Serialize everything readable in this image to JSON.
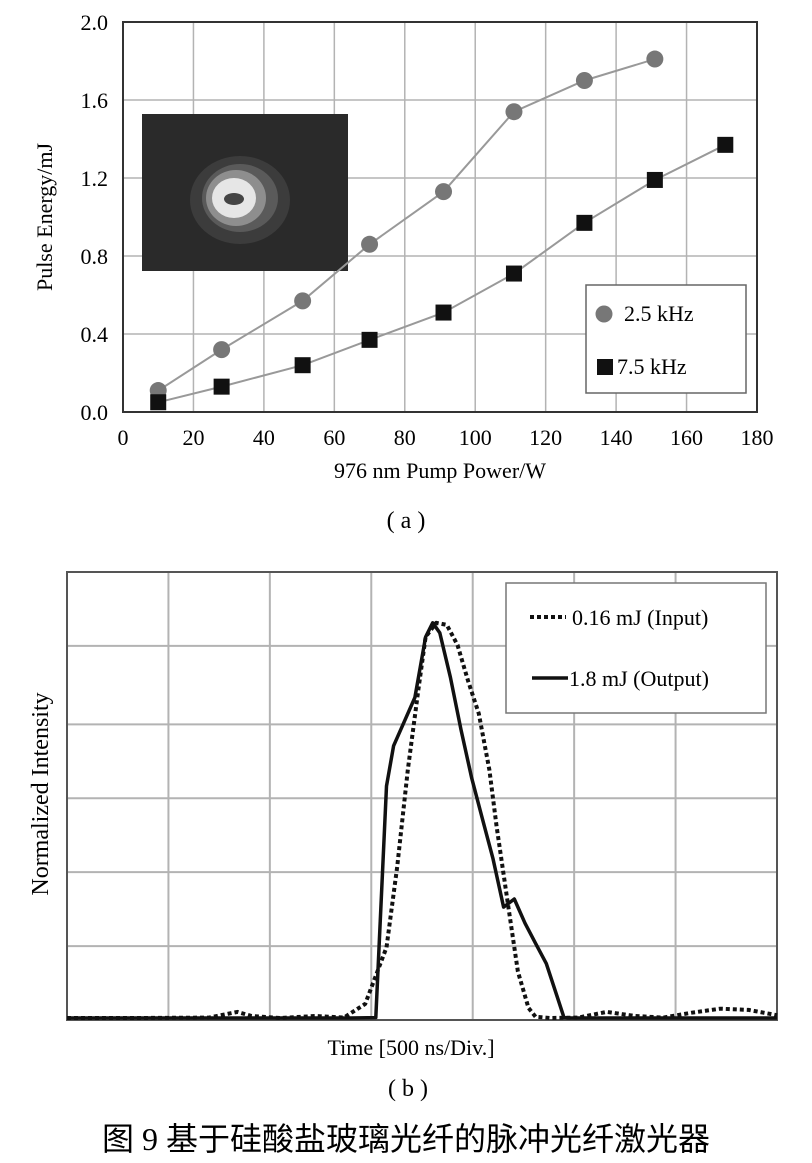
{
  "caption": "图 9   基于硅酸盐玻璃光纤的脉冲光纤激光器",
  "colors": {
    "grid": "#b3b3b3",
    "axis": "#333333",
    "series_25": "#777777",
    "series_75": "#111111",
    "inset_bg": "#2a2a2a"
  },
  "chart_data": [
    {
      "panel_label": "( a )",
      "type": "line",
      "xlabel": "976 nm Pump Power/W",
      "ylabel": "Pulse Energy/mJ",
      "xlim": [
        0,
        180
      ],
      "ylim": [
        0.0,
        2.0
      ],
      "xticks": [
        "0",
        "20",
        "40",
        "60",
        "80",
        "100",
        "120",
        "140",
        "160",
        "180"
      ],
      "yticks": [
        "0.0",
        "0.4",
        "0.8",
        "1.2",
        "1.6",
        "2.0"
      ],
      "grid": true,
      "legend_position": "bottom-right",
      "inset": "beam profile image",
      "series": [
        {
          "name": "2.5 kHz",
          "marker": "circle",
          "x": [
            10,
            28,
            51,
            70,
            91,
            111,
            131,
            151
          ],
          "y": [
            0.11,
            0.32,
            0.57,
            0.86,
            1.13,
            1.54,
            1.7,
            1.81
          ]
        },
        {
          "name": "7.5 kHz",
          "marker": "square",
          "x": [
            10,
            28,
            51,
            70,
            91,
            111,
            131,
            151,
            171
          ],
          "y": [
            0.05,
            0.13,
            0.24,
            0.37,
            0.51,
            0.71,
            0.97,
            1.19,
            1.37
          ]
        }
      ]
    },
    {
      "panel_label": "( b )",
      "type": "line",
      "xlabel": "Time [500 ns/Div.]",
      "ylabel": "Normalized Intensity",
      "xlim": [
        0,
        10
      ],
      "ylim": [
        0,
        1
      ],
      "grid": true,
      "legend_position": "top-right",
      "series": [
        {
          "name": "0.16 mJ (Input)",
          "style": "dotted",
          "x": [
            0,
            1,
            2,
            2.4,
            2.6,
            3,
            3.5,
            3.9,
            4.2,
            4.5,
            4.65,
            4.8,
            4.95,
            5.05,
            5.2,
            5.35,
            5.5,
            5.65,
            5.8,
            5.95,
            6.05,
            6.2,
            6.35,
            6.5,
            6.6,
            6.8,
            7.2,
            7.6,
            8,
            8.4,
            8.8,
            9.2,
            9.6,
            10
          ],
          "y": [
            0.005,
            0.005,
            0.006,
            0.02,
            0.01,
            0.005,
            0.01,
            0.006,
            0.04,
            0.18,
            0.38,
            0.62,
            0.82,
            0.95,
            0.985,
            0.98,
            0.93,
            0.84,
            0.76,
            0.62,
            0.48,
            0.3,
            0.12,
            0.03,
            0.008,
            0.005,
            0.006,
            0.02,
            0.01,
            0.006,
            0.018,
            0.028,
            0.025,
            0.012
          ]
        },
        {
          "name": "1.8 mJ (Output)",
          "style": "solid",
          "x": [
            0,
            1,
            2,
            3,
            4,
            4.35,
            4.4,
            4.5,
            4.6,
            4.75,
            4.9,
            5.05,
            5.15,
            5.25,
            5.4,
            5.55,
            5.7,
            5.85,
            6.0,
            6.15,
            6.3,
            6.45,
            6.6,
            6.75,
            6.9,
            7.0,
            7.1,
            7.3,
            8,
            9,
            10
          ],
          "y": [
            0.005,
            0.005,
            0.005,
            0.005,
            0.005,
            0.006,
            0.2,
            0.58,
            0.68,
            0.74,
            0.8,
            0.95,
            0.985,
            0.96,
            0.85,
            0.72,
            0.6,
            0.5,
            0.4,
            0.28,
            0.3,
            0.24,
            0.19,
            0.14,
            0.06,
            0.006,
            0.005,
            0.005,
            0.005,
            0.005,
            0.005
          ]
        }
      ]
    }
  ]
}
